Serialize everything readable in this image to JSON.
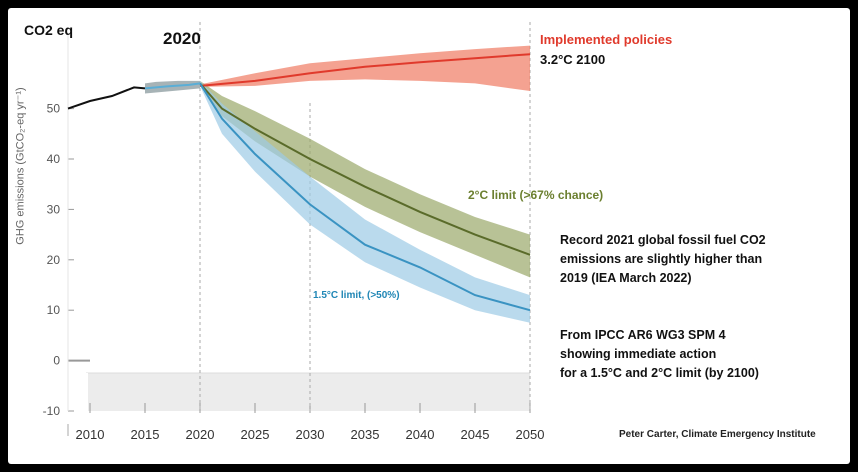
{
  "header": {
    "co2_label": "CO2 eq",
    "year_label": "2020"
  },
  "chart_data": {
    "type": "line",
    "ylabel": "GHG emissions (GtCO₂-eq yr⁻¹)",
    "ylim": [
      -10,
      65
    ],
    "xlim": [
      2008,
      2050
    ],
    "yticks": [
      -10,
      0,
      10,
      20,
      30,
      40,
      50
    ],
    "xticks": [
      2010,
      2015,
      2020,
      2025,
      2030,
      2035,
      2040,
      2045,
      2050
    ],
    "ytick_labels": [
      "-10",
      "0",
      "10",
      "20",
      "30",
      "40",
      "50"
    ],
    "xtick_labels": [
      "2010",
      "2015",
      "2020",
      "2025",
      "2030",
      "2035",
      "2040",
      "2045",
      "2050"
    ],
    "historical": {
      "x": [
        2008,
        2010,
        2012,
        2014,
        2015
      ],
      "y": [
        50,
        51.5,
        52.5,
        54.2,
        54.0
      ]
    },
    "historical_band": {
      "x": [
        2015,
        2016,
        2018,
        2020
      ],
      "upper": [
        55.0,
        55.3,
        55.5,
        55.5
      ],
      "lower": [
        53.0,
        53.2,
        53.6,
        54.0
      ],
      "color": "#8a9a9e"
    },
    "series": [
      {
        "name": "Implemented policies",
        "color": "#e03a2c",
        "band_color": "#f07a62",
        "x": [
          2020,
          2025,
          2030,
          2035,
          2040,
          2045,
          2050
        ],
        "y": [
          54.5,
          55.5,
          57.0,
          58.3,
          59.2,
          60.0,
          60.8
        ],
        "upper": [
          54.8,
          57.0,
          59.0,
          60.0,
          61.0,
          61.8,
          62.5
        ],
        "lower": [
          54.3,
          54.5,
          55.5,
          55.8,
          55.5,
          55.0,
          53.5
        ]
      },
      {
        "name": "2°C limit (>67% chance)",
        "color": "#5a6b2a",
        "band_color": "#9aa86a",
        "x": [
          2020,
          2022,
          2025,
          2030,
          2035,
          2040,
          2045,
          2050
        ],
        "y": [
          55.0,
          50.0,
          46.0,
          40.0,
          34.5,
          29.5,
          25.0,
          21.0
        ],
        "upper": [
          55.5,
          52.5,
          49.5,
          44.0,
          38.0,
          33.0,
          28.5,
          25.0
        ],
        "lower": [
          54.5,
          48.5,
          43.5,
          36.5,
          30.5,
          25.5,
          21.0,
          16.5
        ]
      },
      {
        "name": "1.5°C limit, (>50%)",
        "color": "#3a93c2",
        "band_color": "#9dcbe6",
        "x": [
          2020,
          2022,
          2025,
          2030,
          2035,
          2040,
          2045,
          2050
        ],
        "y": [
          55.0,
          48.0,
          41.0,
          31.0,
          23.0,
          18.5,
          13.0,
          10.0
        ],
        "upper": [
          55.5,
          51.0,
          45.5,
          36.5,
          28.0,
          22.0,
          16.5,
          13.0
        ],
        "lower": [
          54.5,
          45.0,
          37.5,
          27.0,
          19.5,
          14.5,
          10.0,
          7.5
        ]
      }
    ],
    "reference_line_x": 2030,
    "annotations": {
      "implemented_title": "Implemented policies",
      "implemented_value": "3.2°C 2100",
      "two_c": "2°C limit (>67% chance)",
      "one_five_c": "1.5°C limit, (>50%)"
    }
  },
  "notes": {
    "note1": [
      "Record 2021 global fossil fuel CO2",
      "emissions are slightly higher than",
      "2019 (IEA March 2022)"
    ],
    "note2": [
      "From IPCC AR6 WG3 SPM 4",
      "showing immediate action",
      "for a 1.5°C and 2°C limit (by 2100)"
    ]
  },
  "credit": "Peter Carter, Climate Emergency Institute"
}
